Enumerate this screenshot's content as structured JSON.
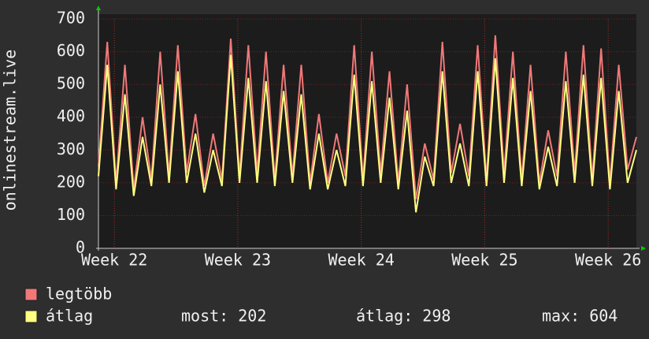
{
  "chart_data": {
    "type": "line",
    "ylabel": "onlinestream.live",
    "x": [
      0,
      0.5,
      1,
      1.5,
      2,
      2.5,
      3,
      3.5,
      4,
      4.5,
      5,
      5.5,
      6,
      6.5,
      7,
      7.5,
      8,
      8.5,
      9,
      9.5,
      10,
      10.5,
      11,
      11.5,
      12,
      12.5,
      13,
      13.5,
      14,
      14.5,
      15,
      15.5,
      16,
      16.5,
      17,
      17.5,
      18,
      18.5,
      19,
      19.5,
      20,
      20.5,
      21,
      21.5,
      22,
      22.5,
      23,
      23.5,
      24,
      24.5,
      25,
      25.5,
      26,
      26.5,
      27,
      27.5,
      28,
      28.5,
      29,
      29.5,
      30,
      30.5
    ],
    "series": [
      {
        "name": "legtöbb",
        "color": "#f07878",
        "values": [
          250,
          630,
          200,
          560,
          180,
          400,
          210,
          600,
          220,
          620,
          230,
          410,
          190,
          350,
          210,
          640,
          220,
          620,
          230,
          600,
          210,
          560,
          220,
          560,
          200,
          410,
          200,
          350,
          220,
          620,
          210,
          600,
          230,
          540,
          200,
          500,
          150,
          320,
          210,
          630,
          230,
          380,
          220,
          620,
          210,
          650,
          230,
          600,
          210,
          560,
          200,
          360,
          220,
          600,
          230,
          620,
          210,
          610,
          200,
          560,
          240,
          340
        ]
      },
      {
        "name": "átlag",
        "color": "#ffff80",
        "values": [
          220,
          560,
          180,
          470,
          160,
          340,
          190,
          500,
          200,
          540,
          200,
          350,
          170,
          300,
          190,
          590,
          200,
          520,
          200,
          510,
          190,
          480,
          200,
          470,
          180,
          350,
          180,
          300,
          190,
          530,
          190,
          510,
          200,
          460,
          180,
          420,
          110,
          280,
          190,
          540,
          200,
          320,
          190,
          540,
          190,
          580,
          200,
          520,
          190,
          480,
          180,
          310,
          190,
          510,
          200,
          530,
          190,
          520,
          180,
          480,
          200,
          300
        ]
      }
    ],
    "xlim": [
      0,
      30.5
    ],
    "xticks": [
      {
        "value": 0.9,
        "label": "Week 22"
      },
      {
        "value": 7.9,
        "label": "Week 23"
      },
      {
        "value": 14.9,
        "label": "Week 24"
      },
      {
        "value": 21.9,
        "label": "Week 25"
      },
      {
        "value": 28.9,
        "label": "Week 26"
      }
    ],
    "ylim": [
      0,
      700
    ],
    "yticks": [
      0,
      100,
      200,
      300,
      400,
      500,
      600,
      700
    ],
    "grid": true,
    "annotations": [
      "most: 202",
      "átlag: 298",
      "max: 604"
    ]
  }
}
